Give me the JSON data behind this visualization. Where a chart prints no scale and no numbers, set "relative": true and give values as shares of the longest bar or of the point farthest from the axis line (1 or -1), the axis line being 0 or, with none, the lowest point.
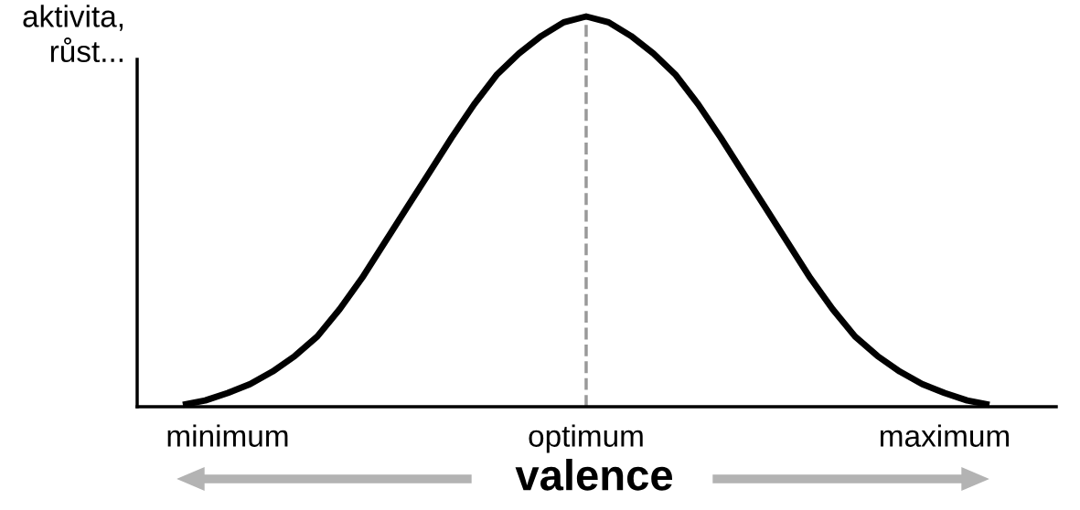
{
  "chart_data": {
    "type": "line",
    "relative": true,
    "xlabel": "valence",
    "ylabel": "aktivita,\nrůst...",
    "categories": [
      null,
      null,
      "minimum",
      null,
      null,
      null,
      null,
      null,
      null,
      null,
      null,
      null,
      null,
      null,
      null,
      null,
      null,
      null,
      "optimum",
      null,
      null,
      null,
      null,
      null,
      null,
      null,
      null,
      null,
      null,
      null,
      null,
      null,
      null,
      null,
      "maximum",
      null,
      null
    ],
    "series": [
      {
        "color": "#000000",
        "values": [
          0.005,
          0.016,
          0.035,
          0.058,
          0.09,
          0.13,
          0.18,
          0.25,
          0.33,
          0.42,
          0.51,
          0.6,
          0.69,
          0.775,
          0.85,
          0.905,
          0.95,
          0.985,
          1,
          0.985,
          0.95,
          0.905,
          0.85,
          0.775,
          0.69,
          0.6,
          0.51,
          0.42,
          0.33,
          0.25,
          0.18,
          0.13,
          0.09,
          0.058,
          0.035,
          0.016,
          0.005
        ]
      }
    ],
    "ref_lines": [
      {
        "axis": "x",
        "value": "optimum",
        "color": "#999999",
        "line_style": "dashed"
      }
    ],
    "marker": "none",
    "line_style": "solid",
    "grid": false,
    "legend": false
  }
}
